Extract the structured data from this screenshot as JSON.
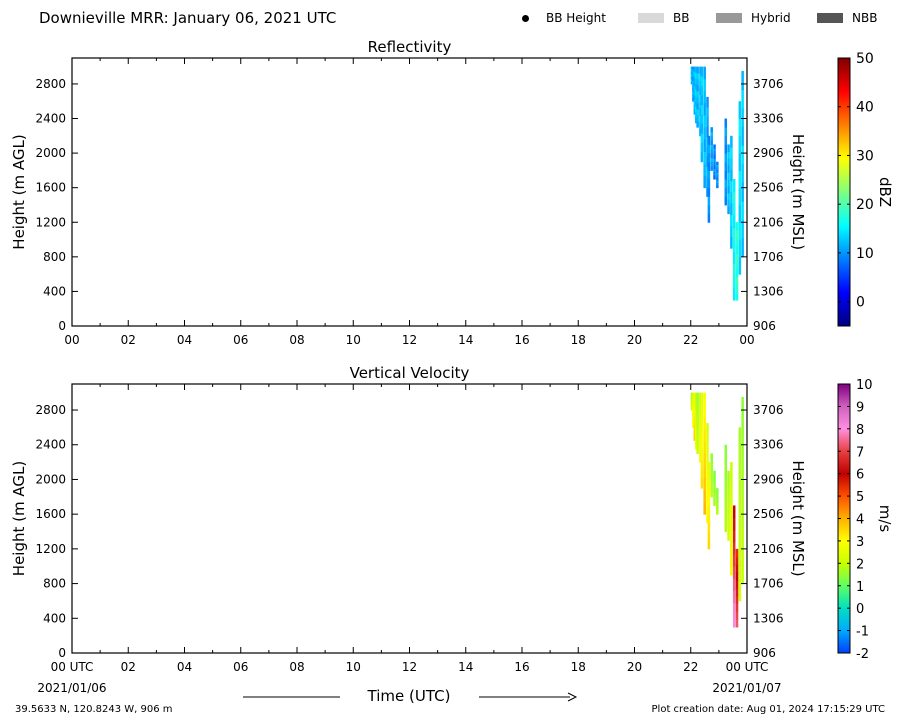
{
  "header": {
    "title": "Downieville MRR:  January 06, 2021 UTC",
    "legend": [
      {
        "label": "BB Height",
        "kind": "dot",
        "color": "#000000"
      },
      {
        "label": "BB",
        "kind": "box",
        "color": "#d9d9d9"
      },
      {
        "label": "Hybrid",
        "kind": "box",
        "color": "#999999"
      },
      {
        "label": "NBB",
        "kind": "box",
        "color": "#555555"
      }
    ]
  },
  "footer": {
    "location": "39.5633 N, 120.8243 W, 906 m",
    "created": "Plot creation date: Aug 01, 2024 17:15:29 UTC"
  },
  "xaxis": {
    "label": "Time (UTC)",
    "range": [
      0,
      24
    ],
    "ticks": [
      0,
      2,
      4,
      6,
      8,
      10,
      12,
      14,
      16,
      18,
      20,
      22,
      24
    ],
    "tick_labels_top": [
      "00",
      "02",
      "04",
      "06",
      "08",
      "10",
      "12",
      "14",
      "16",
      "18",
      "20",
      "22",
      "00"
    ],
    "tick_labels_bottom": [
      "00 UTC",
      "02",
      "04",
      "06",
      "08",
      "10",
      "12",
      "14",
      "16",
      "18",
      "20",
      "22",
      "00 UTC"
    ],
    "start_date": "2021/01/06",
    "end_date": "2021/01/07"
  },
  "chart_data": [
    {
      "type": "heatmap",
      "title": "Reflectivity",
      "ylabel": "Height (m AGL)",
      "ylabel_right": "Height (m MSL)",
      "ylim": [
        0,
        3100
      ],
      "yticks": [
        0,
        400,
        800,
        1200,
        1600,
        2000,
        2400,
        2800
      ],
      "yticks_right": [
        906,
        1306,
        1706,
        2106,
        2506,
        2906,
        3306,
        3706
      ],
      "colorbar": {
        "label": "dBZ",
        "range": [
          -5,
          50
        ],
        "ticks": [
          0,
          10,
          20,
          30,
          40,
          50
        ],
        "colors": [
          "#00007f",
          "#0000ff",
          "#007fff",
          "#00ffff",
          "#7fff7f",
          "#ffff00",
          "#ff7f00",
          "#ff0000",
          "#7f0000"
        ]
      },
      "columns": [
        {
          "t": 22.0,
          "h0": 2800,
          "h1": 3000,
          "v": 12
        },
        {
          "t": 22.05,
          "h0": 2600,
          "h1": 3000,
          "v": 11
        },
        {
          "t": 22.1,
          "h0": 2450,
          "h1": 3000,
          "v": 12
        },
        {
          "t": 22.15,
          "h0": 2350,
          "h1": 3000,
          "v": 13
        },
        {
          "t": 22.2,
          "h0": 2300,
          "h1": 3000,
          "v": 12
        },
        {
          "t": 22.3,
          "h0": 2200,
          "h1": 3000,
          "v": 12
        },
        {
          "t": 22.35,
          "h0": 1900,
          "h1": 3000,
          "v": 13
        },
        {
          "t": 22.45,
          "h0": 1600,
          "h1": 3000,
          "v": 12
        },
        {
          "t": 22.55,
          "h0": 1500,
          "h1": 2650,
          "v": 11
        },
        {
          "t": 22.6,
          "h0": 1200,
          "h1": 2200,
          "v": 10
        },
        {
          "t": 22.7,
          "h0": 1800,
          "h1": 2300,
          "v": 11
        },
        {
          "t": 22.8,
          "h0": 1700,
          "h1": 2100,
          "v": 9
        },
        {
          "t": 22.9,
          "h0": 1600,
          "h1": 1900,
          "v": 10
        },
        {
          "t": 23.2,
          "h0": 1400,
          "h1": 2400,
          "v": 10
        },
        {
          "t": 23.3,
          "h0": 1300,
          "h1": 2100,
          "v": 12
        },
        {
          "t": 23.4,
          "h0": 900,
          "h1": 2200,
          "v": 13
        },
        {
          "t": 23.5,
          "h0": 300,
          "h1": 1700,
          "v": 16
        },
        {
          "t": 23.6,
          "h0": 300,
          "h1": 1200,
          "v": 18
        },
        {
          "t": 23.7,
          "h0": 600,
          "h1": 2600,
          "v": 14
        },
        {
          "t": 23.8,
          "h0": 800,
          "h1": 2950,
          "v": 13
        }
      ]
    },
    {
      "type": "heatmap",
      "title": "Vertical Velocity",
      "ylabel": "Height (m AGL)",
      "ylabel_right": "Height (m MSL)",
      "ylim": [
        0,
        3100
      ],
      "yticks": [
        0,
        400,
        800,
        1200,
        1600,
        2000,
        2400,
        2800
      ],
      "yticks_right": [
        906,
        1306,
        1706,
        2106,
        2506,
        2906,
        3306,
        3706
      ],
      "colorbar": {
        "label": "m/s",
        "range": [
          -2,
          10
        ],
        "ticks": [
          -2,
          -1,
          0,
          1,
          2,
          3,
          4,
          5,
          6,
          7,
          8,
          9,
          10
        ],
        "colors": [
          "#0040ff",
          "#00aaff",
          "#00e0c0",
          "#60ff60",
          "#c8ff00",
          "#ffff00",
          "#ffb000",
          "#ff5000",
          "#c00000",
          "#e84040",
          "#ff90e0",
          "#d060c0",
          "#800080"
        ]
      },
      "columns": [
        {
          "t": 22.0,
          "h0": 2800,
          "h1": 3000,
          "v": 1.6
        },
        {
          "t": 22.05,
          "h0": 2600,
          "h1": 3000,
          "v": 2.2
        },
        {
          "t": 22.1,
          "h0": 2450,
          "h1": 3000,
          "v": 2.6
        },
        {
          "t": 22.15,
          "h0": 2350,
          "h1": 3000,
          "v": 2.0
        },
        {
          "t": 22.2,
          "h0": 2300,
          "h1": 3000,
          "v": 1.5
        },
        {
          "t": 22.3,
          "h0": 2200,
          "h1": 3000,
          "v": 1.8
        },
        {
          "t": 22.35,
          "h0": 1900,
          "h1": 3000,
          "v": 2.4
        },
        {
          "t": 22.45,
          "h0": 1600,
          "h1": 3000,
          "v": 2.8
        },
        {
          "t": 22.55,
          "h0": 1500,
          "h1": 2650,
          "v": 2.2
        },
        {
          "t": 22.6,
          "h0": 1200,
          "h1": 2200,
          "v": 2.5
        },
        {
          "t": 22.7,
          "h0": 1800,
          "h1": 2300,
          "v": 1.4
        },
        {
          "t": 22.8,
          "h0": 1700,
          "h1": 2100,
          "v": 1.2
        },
        {
          "t": 22.9,
          "h0": 1600,
          "h1": 1900,
          "v": 1.3
        },
        {
          "t": 23.2,
          "h0": 1400,
          "h1": 2400,
          "v": 1.3
        },
        {
          "t": 23.3,
          "h0": 1300,
          "h1": 2100,
          "v": 1.6
        },
        {
          "t": 23.4,
          "h0": 900,
          "h1": 2200,
          "v": 2.0
        },
        {
          "t": 23.5,
          "h0": 300,
          "h1": 1700,
          "v": 5.8
        },
        {
          "t": 23.6,
          "h0": 300,
          "h1": 1200,
          "v": 5.2
        },
        {
          "t": 23.7,
          "h0": 600,
          "h1": 2600,
          "v": 1.6
        },
        {
          "t": 23.8,
          "h0": 800,
          "h1": 2950,
          "v": 1.4
        }
      ]
    }
  ]
}
